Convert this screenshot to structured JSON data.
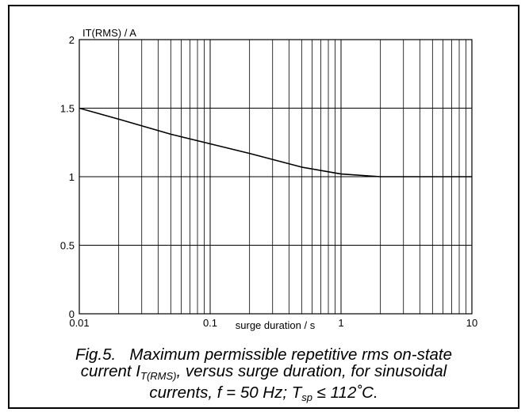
{
  "chart_data": {
    "type": "line",
    "title": "",
    "ylabel": "IT(RMS) / A",
    "xlabel": "surge duration / s",
    "xscale": "log",
    "xlim": [
      0.01,
      10
    ],
    "ylim": [
      0,
      2
    ],
    "grid": true,
    "xticks": [
      "0.01",
      "0.1",
      "1",
      "10"
    ],
    "yticks": [
      "0",
      "0.5",
      "1",
      "1.5",
      "2"
    ],
    "series": [
      {
        "x": [
          0.01,
          0.02,
          0.05,
          0.1,
          0.2,
          0.5,
          1,
          2,
          2.5,
          5,
          10
        ],
        "y": [
          1.5,
          1.42,
          1.31,
          1.24,
          1.17,
          1.07,
          1.02,
          1.0,
          1.0,
          1.0,
          1.0
        ]
      }
    ],
    "colors": {
      "line": "#000000",
      "grid": "#000000"
    }
  },
  "caption": {
    "fig": "Fig.5.",
    "line1_text": "Maximum permissible repetitive rms on-state",
    "line2_pre": "current I",
    "line2_sub": "T(RMS)",
    "line2_post": ", versus surge duration, for sinusoidal",
    "line3_pre": "currents, f = 50 Hz; T",
    "line3_sub": "sp",
    "line3_post": " ≤ 112˚C."
  }
}
